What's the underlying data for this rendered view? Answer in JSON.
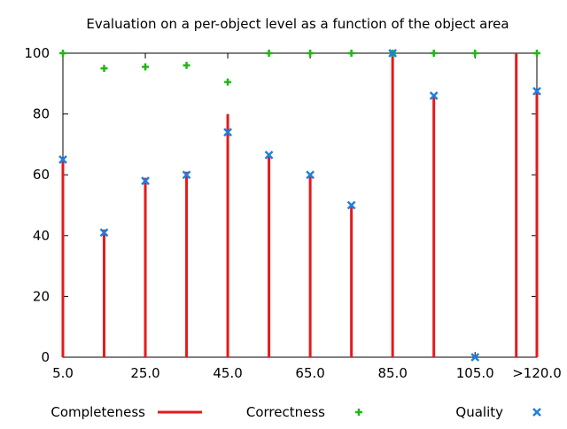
{
  "chart_data": {
    "type": "bar",
    "title": "Evaluation on a per-object level as a function of the object area",
    "xlabel": "",
    "ylabel": "",
    "x": [
      5,
      15,
      25,
      35,
      45,
      55,
      65,
      75,
      85,
      95,
      105,
      115,
      120
    ],
    "xlim": [
      5,
      120
    ],
    "ylim": [
      0,
      100
    ],
    "x_ticks": [
      {
        "value": 5,
        "label": "5.0"
      },
      {
        "value": 25,
        "label": "25.0"
      },
      {
        "value": 45,
        "label": "45.0"
      },
      {
        "value": 65,
        "label": "65.0"
      },
      {
        "value": 85,
        "label": "85.0"
      },
      {
        "value": 105,
        "label": "105.0"
      },
      {
        "value": 120,
        "label": ">120.0"
      }
    ],
    "y_ticks": [
      0,
      20,
      40,
      60,
      80,
      100
    ],
    "grid": false,
    "legend_position": "bottom",
    "series": [
      {
        "name": "Completeness",
        "style": "impulses",
        "color": "#e41a1c",
        "values": [
          65,
          42,
          59,
          61,
          80,
          66,
          60,
          50,
          100,
          86,
          0,
          100,
          87
        ]
      },
      {
        "name": "Correctness",
        "style": "points-plus",
        "color": "#1fb714",
        "values": [
          100,
          95,
          95.5,
          96,
          90.5,
          100,
          100,
          100,
          100,
          100,
          100,
          null,
          100
        ]
      },
      {
        "name": "Quality",
        "style": "points-cross",
        "color": "#1e7fe0",
        "values": [
          65,
          41,
          58,
          60,
          74,
          66.5,
          60,
          50,
          100,
          86,
          0,
          null,
          87.5
        ]
      }
    ]
  }
}
